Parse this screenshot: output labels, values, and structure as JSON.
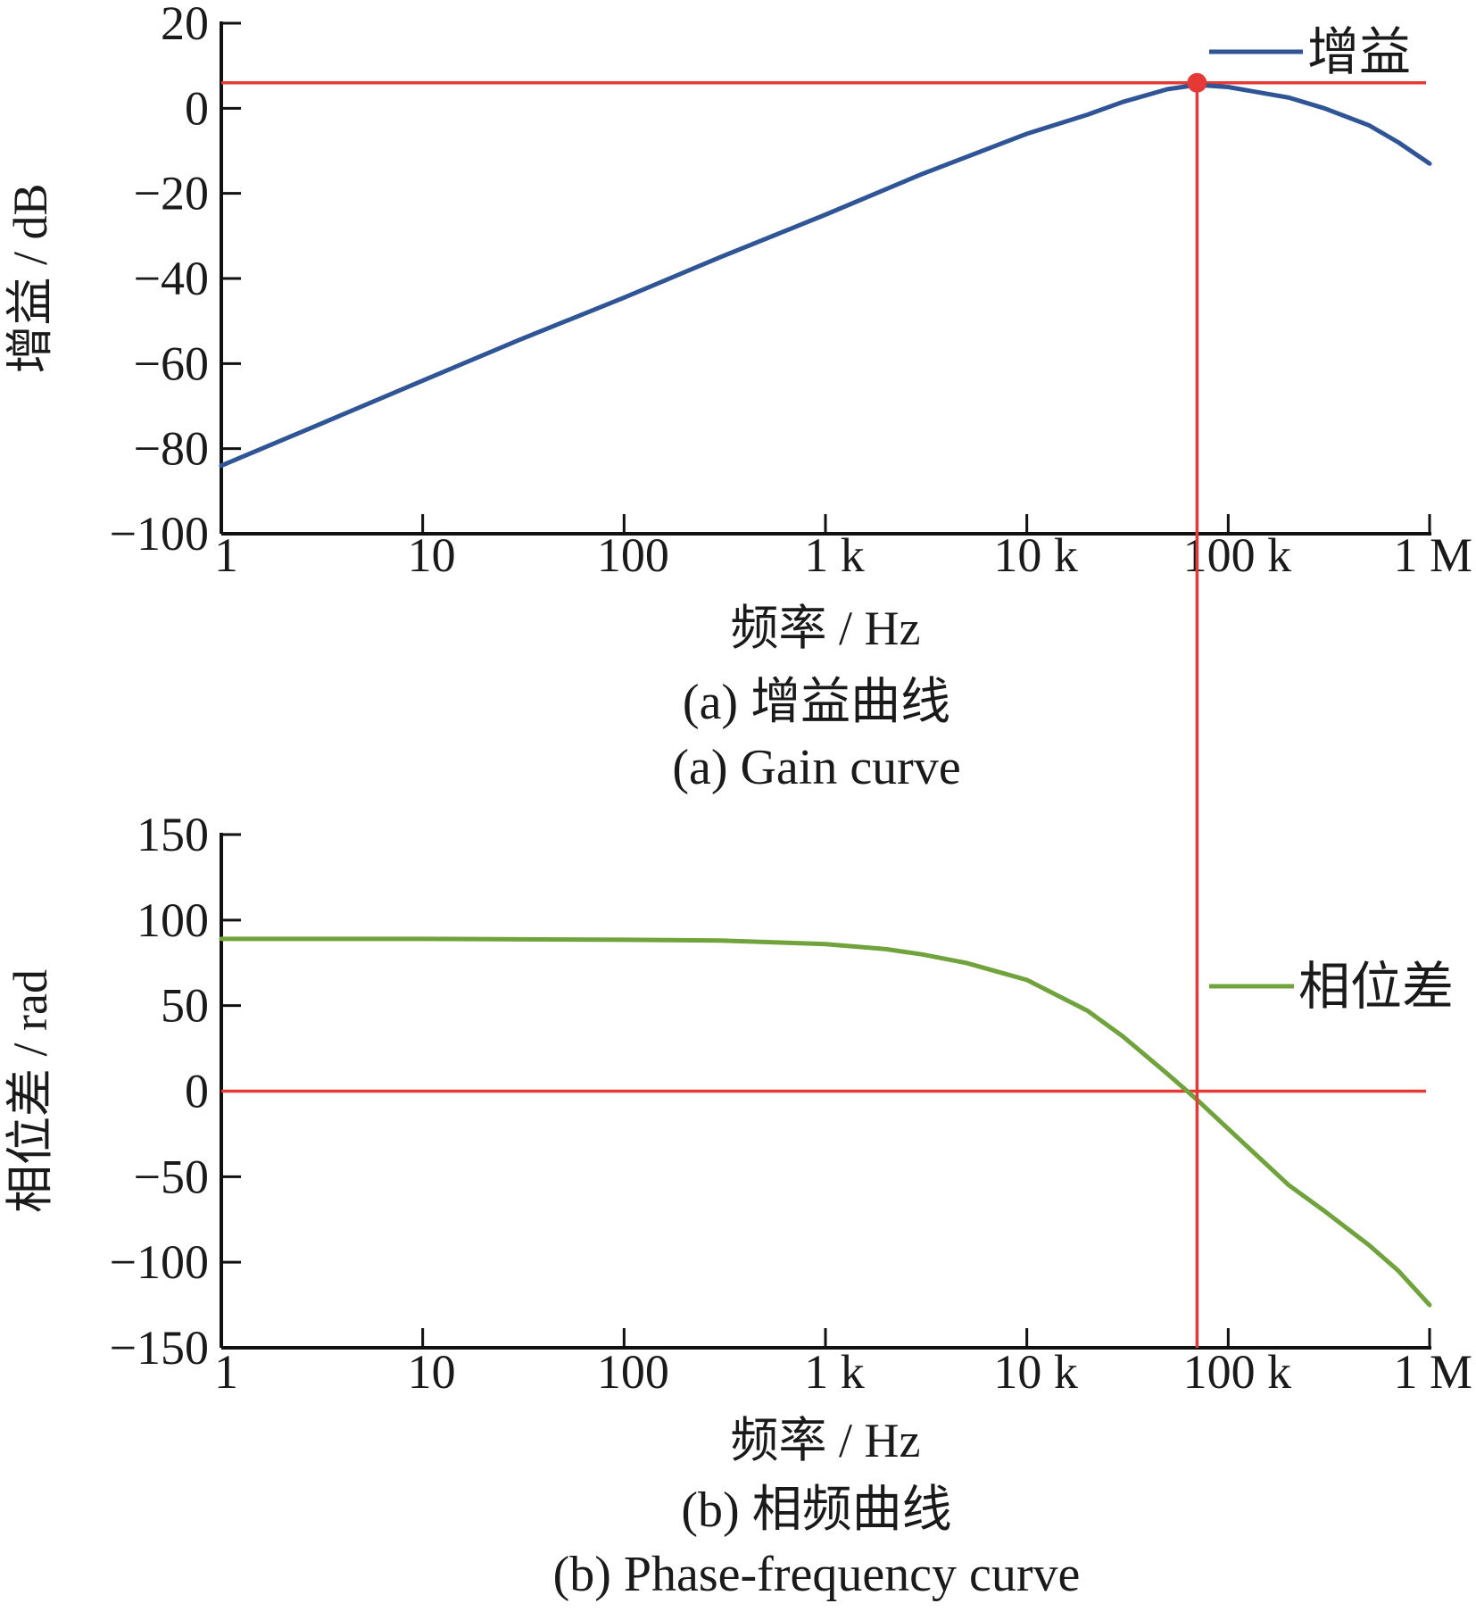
{
  "chart_data": [
    {
      "type": "line",
      "xscale": "log",
      "xlim": [
        1,
        1000000
      ],
      "ylim": [
        -100,
        20
      ],
      "xticks": [
        1,
        10,
        100,
        1000,
        10000,
        100000,
        1000000
      ],
      "xtick_labels": [
        "1",
        "10",
        "100",
        "1 k",
        "10 k",
        "100 k",
        "1 M"
      ],
      "yticks": [
        20,
        0,
        -20,
        -40,
        -60,
        -80,
        -100
      ],
      "ytick_labels": [
        "20",
        "0",
        "−20",
        "−40",
        "−60",
        "−80",
        "−100"
      ],
      "xlabel": "频率 / Hz",
      "ylabel": "增益 / dB",
      "caption_cn": "(a) 增益曲线",
      "caption_en": "(a) Gain curve",
      "legend": "top-right",
      "series": [
        {
          "name": "增益",
          "color": "#2f5597",
          "x": [
            1,
            3,
            10,
            30,
            100,
            300,
            1000,
            3000,
            10000,
            20000,
            30000,
            50000,
            70000,
            100000,
            200000,
            300000,
            500000,
            700000,
            1000000
          ],
          "y": [
            -84,
            -74.5,
            -64,
            -54.5,
            -44.5,
            -35,
            -25,
            -15.5,
            -6,
            -1.5,
            1.5,
            4.5,
            5.5,
            5,
            2.5,
            0,
            -4,
            -8,
            -13
          ]
        }
      ],
      "annotations": {
        "marker": {
          "x": 70000,
          "y": 6,
          "color": "#e53935"
        },
        "hline_y": 6,
        "vline_x": 70000,
        "line_color": "#e53935"
      }
    },
    {
      "type": "line",
      "xscale": "log",
      "xlim": [
        1,
        1000000
      ],
      "ylim": [
        -150,
        150
      ],
      "xticks": [
        1,
        10,
        100,
        1000,
        10000,
        100000,
        1000000
      ],
      "xtick_labels": [
        "1",
        "10",
        "100",
        "1 k",
        "10 k",
        "100 k",
        "1 M"
      ],
      "yticks": [
        150,
        100,
        50,
        0,
        -50,
        -100,
        -150
      ],
      "ytick_labels": [
        "150",
        "100",
        "50",
        "0",
        "−50",
        "−100",
        "−150"
      ],
      "xlabel": "频率 / Hz",
      "ylabel": "相位差 / rad",
      "caption_cn": "(b) 相频曲线",
      "caption_en": "(b) Phase-frequency curve",
      "legend": "right",
      "series": [
        {
          "name": "相位差",
          "color": "#70a33c",
          "x": [
            1,
            10,
            100,
            300,
            1000,
            2000,
            3000,
            5000,
            10000,
            20000,
            30000,
            50000,
            70000,
            100000,
            200000,
            300000,
            500000,
            700000,
            1000000
          ],
          "y": [
            89,
            89,
            88.5,
            88,
            86,
            83,
            80,
            75,
            65,
            47,
            32,
            10,
            -5,
            -22,
            -55,
            -70,
            -90,
            -105,
            -125
          ]
        }
      ],
      "annotations": {
        "hline_y": 0,
        "vline_x": 70000,
        "line_color": "#e53935"
      }
    }
  ]
}
